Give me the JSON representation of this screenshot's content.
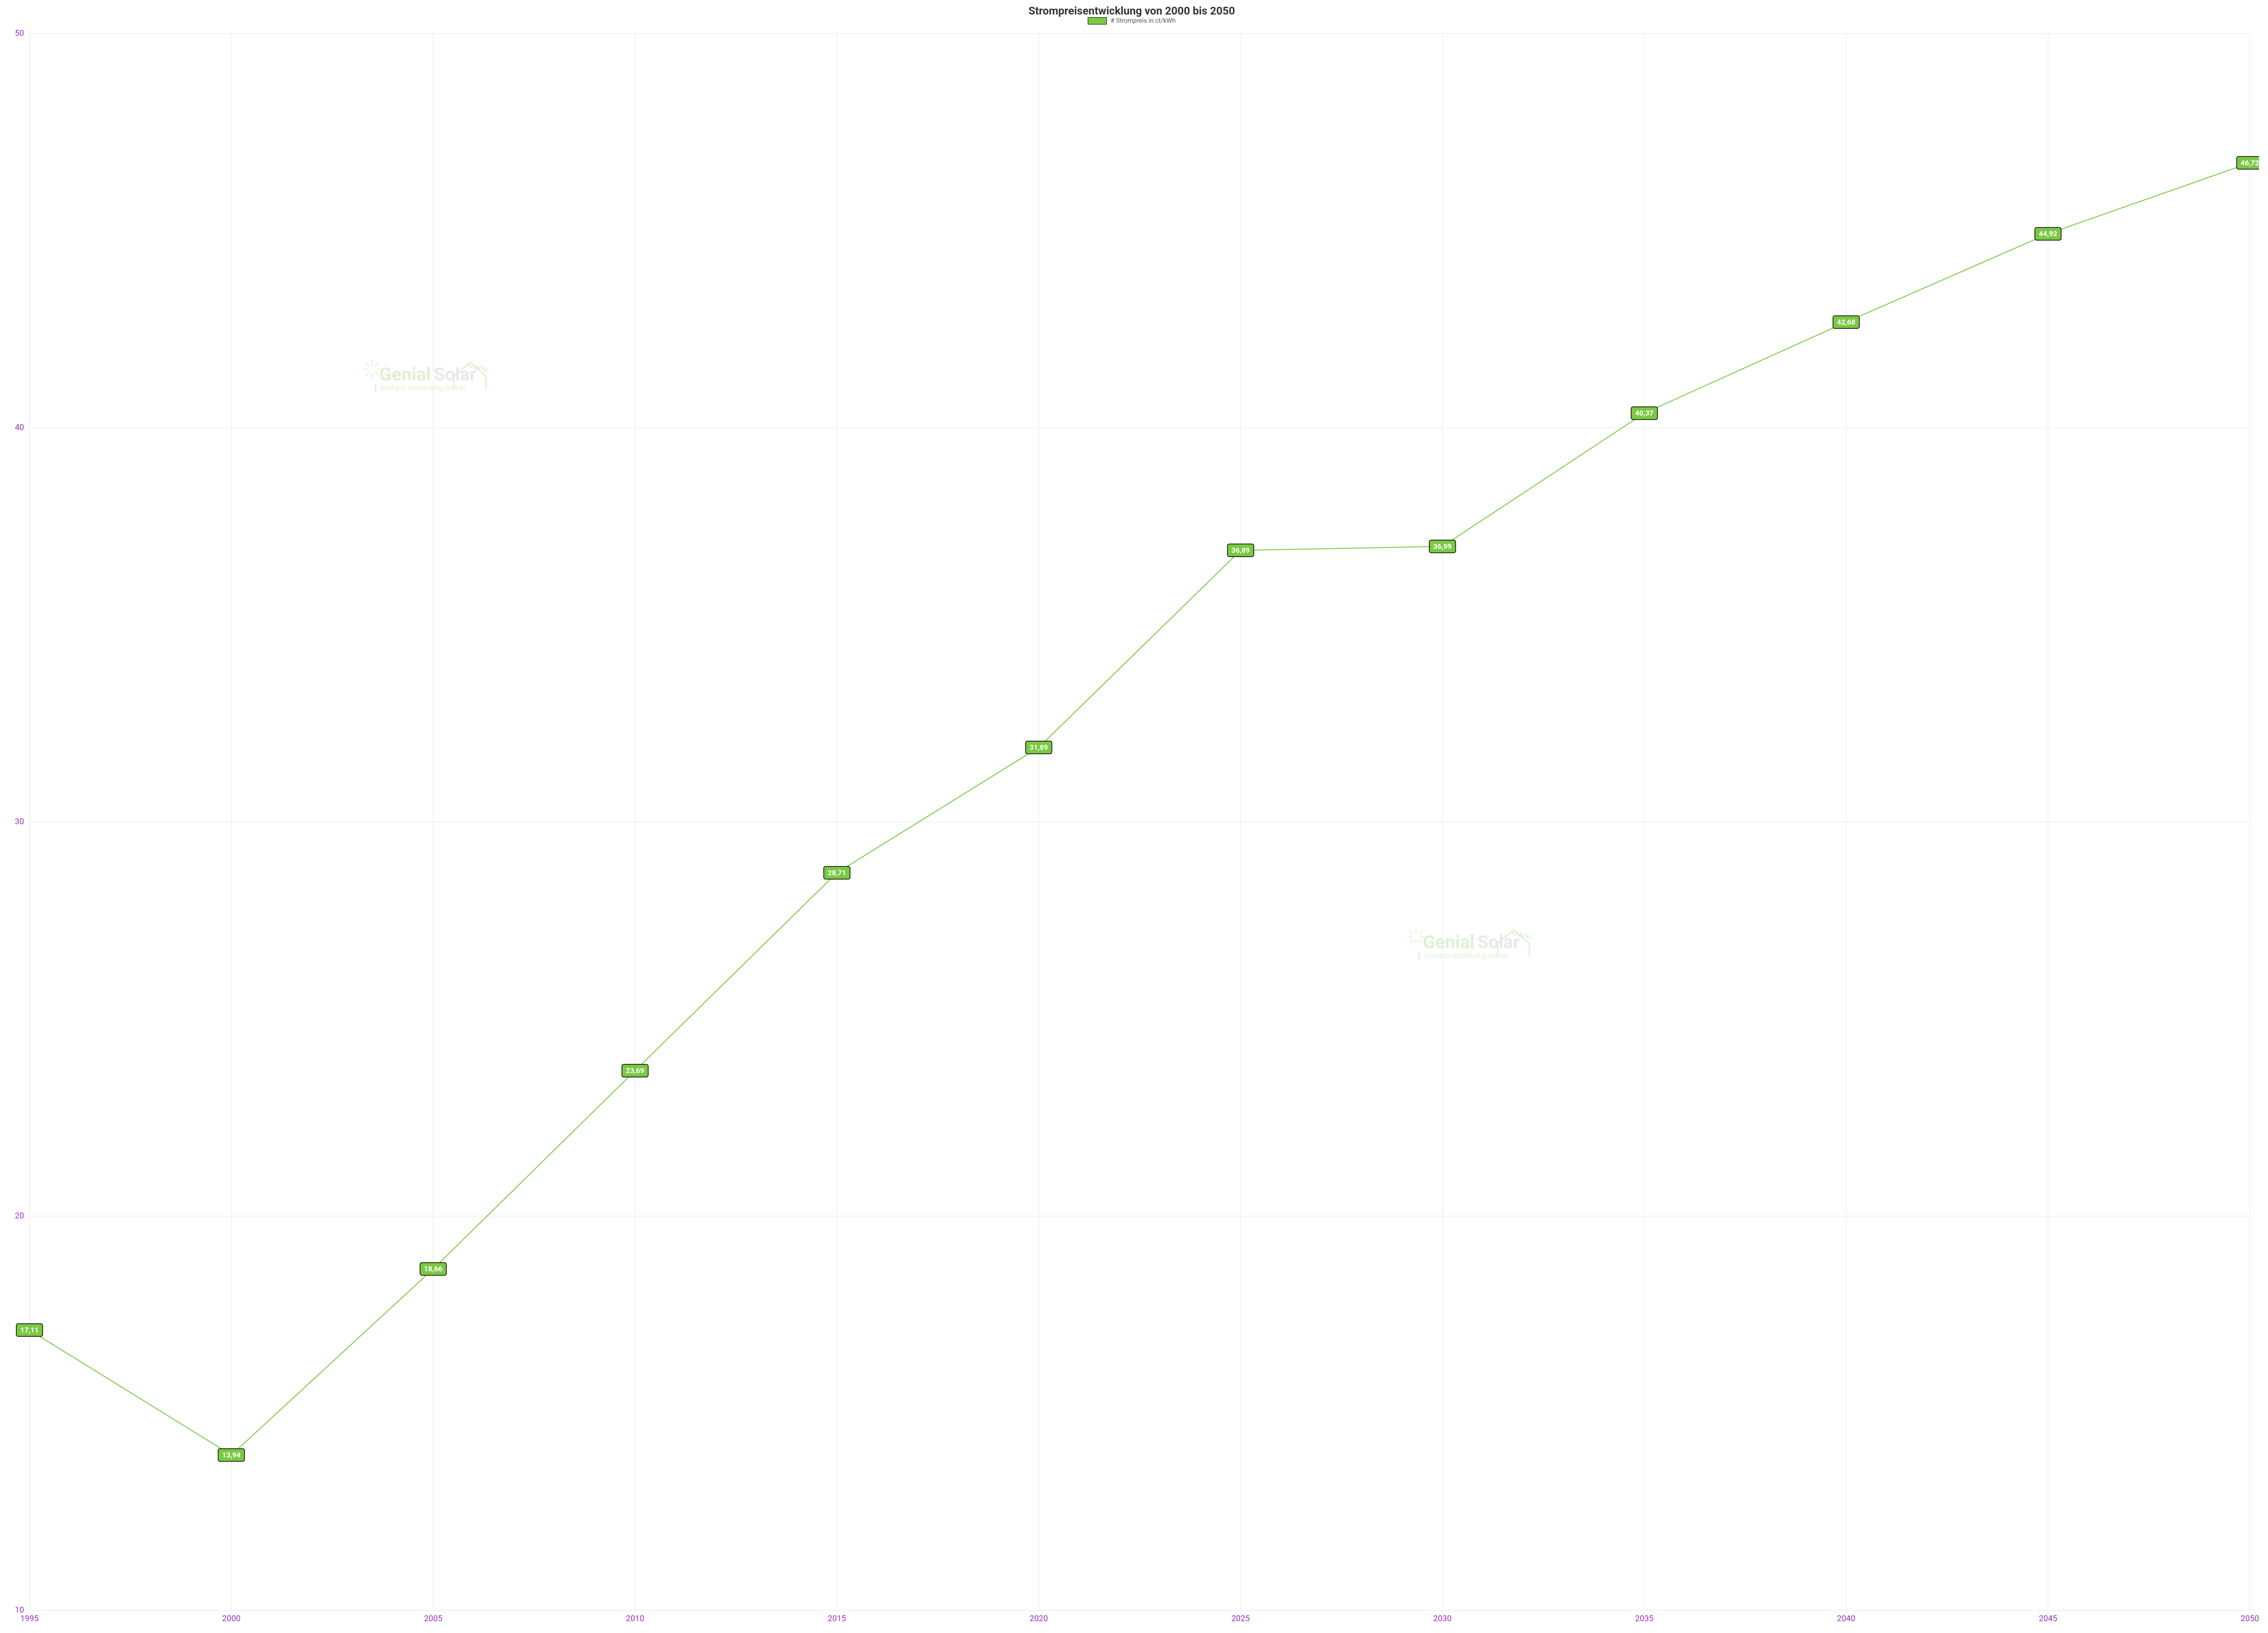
{
  "chart": {
    "type": "line",
    "title": "Strompreisentwicklung von 2000 bis 2050",
    "title_fontsize": 24,
    "title_fontweight": 700,
    "title_color": "#333333",
    "legend": {
      "label": "# Strompreis in ct/kWh",
      "swatch_color": "#7ac943",
      "swatch_border": "#000000",
      "text_color": "#555555",
      "fontsize": 14
    },
    "background_color": "#ffffff",
    "grid_color": "#e6e6e6",
    "axis_text_color": "#9b30c2",
    "axis_fontsize": 18,
    "x": {
      "categories": [
        "1995",
        "2000",
        "2005",
        "2010",
        "2015",
        "2020",
        "2025",
        "2030",
        "2035",
        "2040",
        "2045",
        "2050"
      ],
      "tick_fontsize": 18
    },
    "y": {
      "min": 10,
      "max": 50,
      "tick_step": 10,
      "ticks": [
        10,
        20,
        30,
        40,
        50
      ],
      "tick_fontsize": 18
    },
    "series": {
      "name": "# Strompreis in ct/kWh",
      "color": "#7ac943",
      "line_width": 2,
      "values": [
        17.11,
        13.94,
        18.66,
        23.69,
        28.71,
        31.89,
        36.89,
        36.99,
        40.37,
        42.68,
        44.92,
        46.72
      ],
      "labels": [
        "17,11",
        "13,94",
        "18,66",
        "23,69",
        "28,71",
        "31,89",
        "36,89",
        "36,99",
        "40,37",
        "42,68",
        "44,92",
        "46,72"
      ],
      "label_box_fill": "#7ac943",
      "label_box_stroke": "#000000",
      "label_text_color": "#ffffff",
      "label_fontsize": 16,
      "label_fontweight": 700
    },
    "watermark": {
      "brand_part1": "Genial",
      "brand_part2": "Solar",
      "tagline": "Einfach.Nachhaltig.Genial",
      "copyright_glyph": "©",
      "green": "#c9e9b5",
      "gray": "#dcdcdc",
      "opacity": 0.6,
      "fontsize_brand": 40,
      "fontsize_tag": 16
    }
  }
}
